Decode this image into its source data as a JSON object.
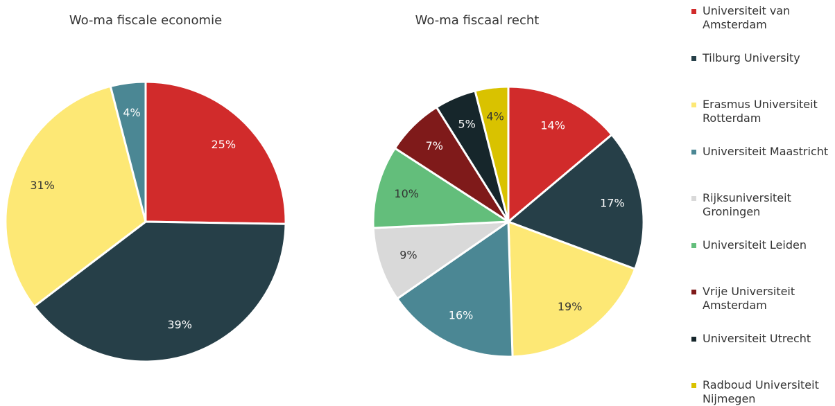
{
  "chart_data": [
    {
      "type": "pie",
      "title": "Wo-ma fiscale economie",
      "values": [
        25,
        39,
        31,
        4
      ],
      "value_labels": [
        "25%",
        "39%",
        "31%",
        "4%"
      ]
    },
    {
      "type": "pie",
      "title": "Wo-ma fiscaal recht",
      "values": [
        14,
        17,
        19,
        16,
        9,
        10,
        7,
        5,
        4
      ],
      "value_labels": [
        "14%",
        "17%",
        "19%",
        "16%",
        "9%",
        "10%",
        "7%",
        "5%",
        "4%"
      ]
    }
  ],
  "legend": {
    "labels": [
      "Universiteit van Amsterdam",
      "Tilburg University",
      "Erasmus Universiteit Rotterdam",
      "Universiteit Maastricht",
      "Rijksuniversiteit Groningen",
      "Universiteit Leiden",
      "Vrije Universiteit Amsterdam",
      "Universiteit Utrecht",
      "Radboud Universiteit Nijmegen"
    ],
    "colors": [
      "#d12b2b",
      "#263f48",
      "#fde875",
      "#4b8794",
      "#d9d9d9",
      "#63be7b",
      "#7f1a1a",
      "#16262b",
      "#d9c200"
    ]
  }
}
